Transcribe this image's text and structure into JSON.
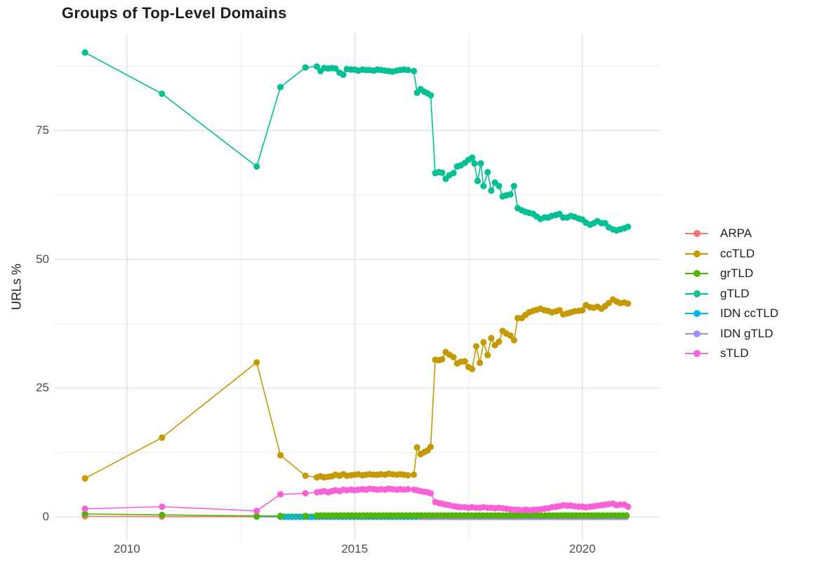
{
  "title": "Groups of Top-Level Domains",
  "chart_data": {
    "type": "line",
    "title": "Groups of Top-Level Domains",
    "xlabel": "",
    "ylabel": "URLs %",
    "xlim": [
      2008.4,
      2021.7
    ],
    "ylim": [
      -4.6,
      93.9
    ],
    "grid": "on",
    "legend_position": "right",
    "x_ticks": [
      {
        "value": 2010,
        "label": "2010"
      },
      {
        "value": 2015,
        "label": "2015"
      },
      {
        "value": 2020,
        "label": "2020"
      }
    ],
    "y_ticks": [
      {
        "value": 0,
        "label": "0"
      },
      {
        "value": 25,
        "label": "25"
      },
      {
        "value": 50,
        "label": "50"
      },
      {
        "value": 75,
        "label": "75"
      }
    ],
    "x_minor": [
      2012.5,
      2017.5
    ],
    "y_minor": [
      12.5,
      37.5,
      62.5,
      87.5
    ],
    "grid_major_color": "#e2e2e2",
    "grid_minor_color": "#ececec",
    "axis_text_color": "#4d4d4d",
    "draw_order": [
      "ARPA",
      "IDN ccTLD",
      "IDN gTLD",
      "grTLD",
      "gTLD",
      "ccTLD",
      "sTLD"
    ],
    "series": [
      {
        "name": "ARPA",
        "color": "#F8766D",
        "points": [
          [
            2009.08,
            0.15
          ],
          [
            2010.77,
            0.08
          ],
          [
            2012.85,
            0.05
          ]
        ],
        "fill": {
          "from": 2013.37,
          "to": 2021.0,
          "step": 0.085,
          "value": 0.02
        }
      },
      {
        "name": "ccTLD",
        "color": "#C49A00",
        "points": [
          [
            2009.08,
            7.5
          ],
          [
            2010.77,
            15.4
          ],
          [
            2012.85,
            30
          ],
          [
            2013.37,
            12
          ],
          [
            2013.92,
            8
          ],
          [
            2014.17,
            7.7
          ],
          [
            2014.25,
            7.9
          ],
          [
            2014.33,
            7.7
          ],
          [
            2014.42,
            7.8
          ],
          [
            2014.5,
            7.9
          ],
          [
            2014.58,
            8.2
          ],
          [
            2014.67,
            8
          ],
          [
            2014.75,
            8.3
          ],
          [
            2014.83,
            8
          ],
          [
            2014.92,
            8.1
          ],
          [
            2015,
            8.2
          ],
          [
            2015.08,
            8.3
          ],
          [
            2015.17,
            8.1
          ],
          [
            2015.25,
            8.2
          ],
          [
            2015.33,
            8.3
          ],
          [
            2015.42,
            8.2
          ],
          [
            2015.5,
            8.2
          ],
          [
            2015.58,
            8.3
          ],
          [
            2015.67,
            8.2
          ],
          [
            2015.75,
            8.4
          ],
          [
            2015.83,
            8.3
          ],
          [
            2015.92,
            8.2
          ],
          [
            2016,
            8.3
          ],
          [
            2016.08,
            8.2
          ],
          [
            2016.17,
            8.1
          ],
          [
            2016.3,
            8.2
          ],
          [
            2016.37,
            13.5
          ],
          [
            2016.45,
            12.2
          ],
          [
            2016.53,
            12.6
          ],
          [
            2016.6,
            12.9
          ],
          [
            2016.67,
            13.6
          ],
          [
            2016.77,
            30.5
          ],
          [
            2016.85,
            30.4
          ],
          [
            2016.92,
            30.6
          ],
          [
            2017,
            32
          ],
          [
            2017.08,
            31.5
          ],
          [
            2017.17,
            31
          ],
          [
            2017.25,
            29.8
          ],
          [
            2017.33,
            30.1
          ],
          [
            2017.42,
            30.2
          ],
          [
            2017.5,
            29.1
          ],
          [
            2017.58,
            28.7
          ],
          [
            2017.67,
            33.1
          ],
          [
            2017.75,
            29.9
          ],
          [
            2017.83,
            33.9
          ],
          [
            2017.92,
            31.4
          ],
          [
            2018,
            34.7
          ],
          [
            2018.08,
            33.3
          ],
          [
            2018.17,
            34
          ],
          [
            2018.25,
            36.1
          ],
          [
            2018.33,
            35.6
          ],
          [
            2018.42,
            35.2
          ],
          [
            2018.5,
            34.3
          ],
          [
            2018.58,
            38.6
          ],
          [
            2018.67,
            38.6
          ],
          [
            2018.75,
            39.2
          ],
          [
            2018.83,
            39.7
          ],
          [
            2018.92,
            40
          ],
          [
            2019,
            40.2
          ],
          [
            2019.08,
            40.4
          ],
          [
            2019.17,
            40.1
          ],
          [
            2019.25,
            40
          ],
          [
            2019.33,
            39.7
          ],
          [
            2019.42,
            39.9
          ],
          [
            2019.5,
            40.1
          ],
          [
            2019.58,
            39.3
          ],
          [
            2019.67,
            39.5
          ],
          [
            2019.75,
            39.7
          ],
          [
            2019.83,
            39.9
          ],
          [
            2019.92,
            40
          ],
          [
            2020,
            40.1
          ],
          [
            2020.08,
            41.1
          ],
          [
            2020.17,
            40.7
          ],
          [
            2020.25,
            40.6
          ],
          [
            2020.33,
            40.8
          ],
          [
            2020.42,
            40.4
          ],
          [
            2020.5,
            40.9
          ],
          [
            2020.58,
            41.5
          ],
          [
            2020.67,
            42.2
          ],
          [
            2020.75,
            41.8
          ],
          [
            2020.83,
            41.5
          ],
          [
            2020.92,
            41.6
          ],
          [
            2021,
            41.4
          ]
        ]
      },
      {
        "name": "grTLD",
        "color": "#53B400",
        "points": [
          [
            2009.08,
            0.6
          ],
          [
            2010.77,
            0.4
          ],
          [
            2012.85,
            0.2
          ],
          [
            2013.37,
            0.2
          ],
          [
            2013.92,
            0.2
          ]
        ],
        "fill": {
          "from": 2014.17,
          "to": 2021.0,
          "step": 0.085,
          "value": 0.3
        }
      },
      {
        "name": "gTLD",
        "color": "#00C094",
        "points": [
          [
            2009.08,
            90.1
          ],
          [
            2010.77,
            82.1
          ],
          [
            2012.85,
            68
          ],
          [
            2013.37,
            83.4
          ],
          [
            2013.92,
            87.2
          ],
          [
            2014.17,
            87.4
          ],
          [
            2014.25,
            86.5
          ],
          [
            2014.33,
            87.1
          ],
          [
            2014.42,
            87
          ],
          [
            2014.5,
            87.1
          ],
          [
            2014.58,
            87
          ],
          [
            2014.67,
            86.2
          ],
          [
            2014.75,
            85.8
          ],
          [
            2014.83,
            86.9
          ],
          [
            2014.92,
            86.8
          ],
          [
            2015,
            86.8
          ],
          [
            2015.08,
            86.6
          ],
          [
            2015.17,
            86.8
          ],
          [
            2015.25,
            86.7
          ],
          [
            2015.33,
            86.7
          ],
          [
            2015.42,
            86.6
          ],
          [
            2015.5,
            86.8
          ],
          [
            2015.58,
            86.7
          ],
          [
            2015.67,
            86.6
          ],
          [
            2015.75,
            86.5
          ],
          [
            2015.83,
            86.4
          ],
          [
            2015.92,
            86.6
          ],
          [
            2016,
            86.7
          ],
          [
            2016.08,
            86.8
          ],
          [
            2016.17,
            86.7
          ],
          [
            2016.3,
            86.5
          ],
          [
            2016.37,
            82.3
          ],
          [
            2016.45,
            83
          ],
          [
            2016.53,
            82.5
          ],
          [
            2016.6,
            82.2
          ],
          [
            2016.67,
            81.8
          ],
          [
            2016.77,
            66.7
          ],
          [
            2016.85,
            66.9
          ],
          [
            2016.92,
            66.8
          ],
          [
            2017,
            65.6
          ],
          [
            2017.08,
            66.3
          ],
          [
            2017.17,
            66.7
          ],
          [
            2017.25,
            68
          ],
          [
            2017.33,
            68.2
          ],
          [
            2017.42,
            68.7
          ],
          [
            2017.5,
            69.3
          ],
          [
            2017.58,
            69.7
          ],
          [
            2017.63,
            68.6
          ],
          [
            2017.7,
            65.2
          ],
          [
            2017.77,
            68.6
          ],
          [
            2017.83,
            64.2
          ],
          [
            2017.92,
            66.9
          ],
          [
            2018,
            63.3
          ],
          [
            2018.08,
            64.9
          ],
          [
            2018.17,
            64.2
          ],
          [
            2018.25,
            62.2
          ],
          [
            2018.33,
            62.4
          ],
          [
            2018.42,
            62.6
          ],
          [
            2018.5,
            64.2
          ],
          [
            2018.58,
            59.9
          ],
          [
            2018.67,
            59.5
          ],
          [
            2018.75,
            59.2
          ],
          [
            2018.83,
            59
          ],
          [
            2018.92,
            58.8
          ],
          [
            2019,
            58.3
          ],
          [
            2019.08,
            57.8
          ],
          [
            2019.17,
            58.1
          ],
          [
            2019.25,
            58.1
          ],
          [
            2019.33,
            58.4
          ],
          [
            2019.42,
            58.6
          ],
          [
            2019.5,
            58.8
          ],
          [
            2019.58,
            58.1
          ],
          [
            2019.67,
            58.1
          ],
          [
            2019.75,
            58.4
          ],
          [
            2019.83,
            58.2
          ],
          [
            2019.92,
            57.9
          ],
          [
            2020,
            57.7
          ],
          [
            2020.08,
            57.1
          ],
          [
            2020.17,
            56.7
          ],
          [
            2020.25,
            57
          ],
          [
            2020.33,
            57.4
          ],
          [
            2020.42,
            57
          ],
          [
            2020.5,
            57
          ],
          [
            2020.58,
            56.2
          ],
          [
            2020.67,
            55.8
          ],
          [
            2020.75,
            55.6
          ],
          [
            2020.83,
            55.8
          ],
          [
            2020.92,
            56
          ],
          [
            2021,
            56.3
          ]
        ]
      },
      {
        "name": "IDN ccTLD",
        "color": "#00B6EB",
        "points": [
          [
            2012.85,
            0.1
          ]
        ],
        "fill": {
          "from": 2013.37,
          "to": 2021.0,
          "step": 0.085,
          "value": 0.06
        }
      },
      {
        "name": "IDN gTLD",
        "color": "#A58AFF",
        "points": [],
        "fill": {
          "from": 2016.45,
          "to": 2021.0,
          "step": 0.085,
          "value": 0.02
        }
      },
      {
        "name": "sTLD",
        "color": "#FB61D7",
        "points": [
          [
            2009.08,
            1.6
          ],
          [
            2010.77,
            2
          ],
          [
            2012.85,
            1.2
          ],
          [
            2013.37,
            4.4
          ],
          [
            2013.92,
            4.6
          ],
          [
            2014.17,
            4.8
          ],
          [
            2014.25,
            4.9
          ],
          [
            2014.33,
            5
          ],
          [
            2014.42,
            4.8
          ],
          [
            2014.5,
            5
          ],
          [
            2014.58,
            5.2
          ],
          [
            2014.67,
            5
          ],
          [
            2014.75,
            5.3
          ],
          [
            2014.83,
            5.2
          ],
          [
            2014.92,
            5.3
          ],
          [
            2015,
            5.2
          ],
          [
            2015.08,
            5.3
          ],
          [
            2015.17,
            5.4
          ],
          [
            2015.25,
            5.3
          ],
          [
            2015.33,
            5.5
          ],
          [
            2015.42,
            5.4
          ],
          [
            2015.5,
            5.3
          ],
          [
            2015.58,
            5.4
          ],
          [
            2015.67,
            5.3
          ],
          [
            2015.75,
            5.5
          ],
          [
            2015.83,
            5.4
          ],
          [
            2015.92,
            5.3
          ],
          [
            2016,
            5.4
          ],
          [
            2016.08,
            5.3
          ],
          [
            2016.17,
            5.4
          ],
          [
            2016.3,
            5.3
          ],
          [
            2016.37,
            5.2
          ],
          [
            2016.45,
            5
          ],
          [
            2016.53,
            4.9
          ],
          [
            2016.6,
            4.8
          ],
          [
            2016.67,
            4.6
          ],
          [
            2016.77,
            2.9
          ],
          [
            2016.85,
            2.7
          ],
          [
            2016.92,
            2.6
          ],
          [
            2017,
            2.4
          ],
          [
            2017.08,
            2.3
          ],
          [
            2017.17,
            2.1
          ],
          [
            2017.25,
            2
          ],
          [
            2017.33,
            1.9
          ],
          [
            2017.42,
            1.9
          ],
          [
            2017.5,
            1.8
          ],
          [
            2017.58,
            1.9
          ],
          [
            2017.67,
            1.8
          ],
          [
            2017.75,
            1.8
          ],
          [
            2017.83,
            1.9
          ],
          [
            2017.92,
            1.8
          ],
          [
            2018,
            1.8
          ],
          [
            2018.08,
            1.7
          ],
          [
            2018.17,
            1.8
          ],
          [
            2018.25,
            1.7
          ],
          [
            2018.33,
            1.6
          ],
          [
            2018.42,
            1.5
          ],
          [
            2018.5,
            1.4
          ],
          [
            2018.58,
            1.4
          ],
          [
            2018.67,
            1.3
          ],
          [
            2018.75,
            1.4
          ],
          [
            2018.83,
            1.3
          ],
          [
            2018.92,
            1.4
          ],
          [
            2019,
            1.4
          ],
          [
            2019.08,
            1.5
          ],
          [
            2019.17,
            1.6
          ],
          [
            2019.25,
            1.7
          ],
          [
            2019.33,
            1.9
          ],
          [
            2019.42,
            2
          ],
          [
            2019.5,
            2.1
          ],
          [
            2019.58,
            2.3
          ],
          [
            2019.67,
            2.2
          ],
          [
            2019.75,
            2.2
          ],
          [
            2019.83,
            2.1
          ],
          [
            2019.92,
            2
          ],
          [
            2020,
            2
          ],
          [
            2020.08,
            1.9
          ],
          [
            2020.17,
            2
          ],
          [
            2020.25,
            2.1
          ],
          [
            2020.33,
            2.2
          ],
          [
            2020.42,
            2.3
          ],
          [
            2020.5,
            2.4
          ],
          [
            2020.58,
            2.5
          ],
          [
            2020.67,
            2.6
          ],
          [
            2020.75,
            2.3
          ],
          [
            2020.83,
            2.4
          ],
          [
            2020.92,
            2.4
          ],
          [
            2021,
            2
          ]
        ]
      }
    ]
  }
}
